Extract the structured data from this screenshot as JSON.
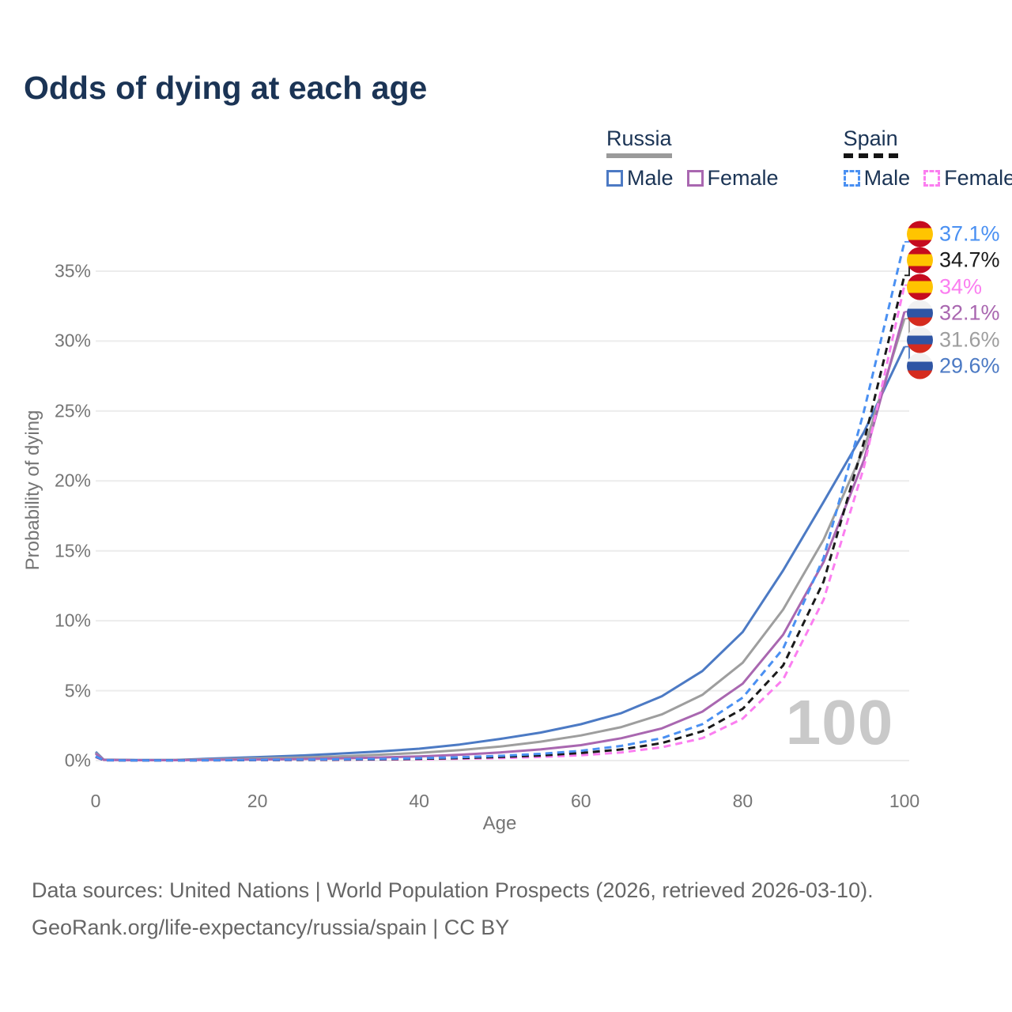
{
  "title": "Odds of dying at each age",
  "legend": {
    "groups": [
      {
        "name": "Russia",
        "underline": "solid-gray",
        "items": [
          {
            "label": "Male"
          },
          {
            "label": "Female"
          }
        ]
      },
      {
        "name": "Spain",
        "underline": "dashed-black",
        "items": [
          {
            "label": "Male"
          },
          {
            "label": "Female"
          }
        ]
      }
    ]
  },
  "colors": {
    "title_text": "#1b3455",
    "axis_text": "#757575",
    "gridline": "#ececec",
    "watermark_text": "#c9c9c9",
    "russia_male": "#4c7ac4",
    "russia_total": "#9e9e9e",
    "russia_female": "#a967b0",
    "spain_male": "#4a90f2",
    "spain_total": "#1a1a1a",
    "spain_female": "#fb7ef0"
  },
  "chart_data": {
    "type": "line",
    "title": "Odds of dying at each age",
    "xlabel": "Age",
    "ylabel": "Probability of dying",
    "x_ticks": [
      0,
      20,
      40,
      60,
      80,
      100
    ],
    "y_ticks_pct": [
      0,
      5,
      10,
      15,
      20,
      25,
      30,
      35
    ],
    "xlim": [
      0,
      100
    ],
    "ylim_pct": [
      0,
      38
    ],
    "grid": "horizontal-only",
    "legend_position": "top-right",
    "watermark": "100",
    "ages": [
      0,
      1,
      5,
      10,
      15,
      20,
      25,
      30,
      35,
      40,
      45,
      50,
      55,
      60,
      65,
      70,
      75,
      80,
      85,
      90,
      95,
      100
    ],
    "series": [
      {
        "name": "Spain Male",
        "country": "spain",
        "dash": true,
        "color": "#4a90f2",
        "end_label": "37.1%",
        "values_pct": [
          0.3,
          0.03,
          0.01,
          0.01,
          0.03,
          0.05,
          0.07,
          0.09,
          0.12,
          0.17,
          0.24,
          0.34,
          0.48,
          0.7,
          1.05,
          1.6,
          2.6,
          4.5,
          8.0,
          14.5,
          25.0,
          37.1
        ]
      },
      {
        "name": "Spain Total",
        "country": "spain",
        "dash": true,
        "color": "#1a1a1a",
        "end_label": "34.7%",
        "values_pct": [
          0.28,
          0.02,
          0.01,
          0.01,
          0.02,
          0.04,
          0.05,
          0.07,
          0.09,
          0.13,
          0.18,
          0.26,
          0.37,
          0.54,
          0.8,
          1.25,
          2.1,
          3.7,
          6.8,
          12.8,
          22.8,
          34.7
        ]
      },
      {
        "name": "Spain Female",
        "country": "spain",
        "dash": true,
        "color": "#fb7ef0",
        "end_label": "34%",
        "values_pct": [
          0.25,
          0.02,
          0.01,
          0.01,
          0.02,
          0.03,
          0.04,
          0.05,
          0.07,
          0.09,
          0.13,
          0.18,
          0.26,
          0.38,
          0.58,
          0.95,
          1.6,
          3.0,
          5.8,
          11.5,
          21.0,
          34.0
        ]
      },
      {
        "name": "Russia Female",
        "country": "russia",
        "dash": false,
        "color": "#a967b0",
        "end_label": "32.1%",
        "values_pct": [
          0.5,
          0.05,
          0.03,
          0.03,
          0.06,
          0.08,
          0.11,
          0.15,
          0.22,
          0.3,
          0.42,
          0.58,
          0.8,
          1.1,
          1.6,
          2.3,
          3.5,
          5.5,
          9.0,
          14.2,
          21.5,
          32.1
        ]
      },
      {
        "name": "Russia Total",
        "country": "russia",
        "dash": false,
        "color": "#9e9e9e",
        "end_label": "31.6%",
        "values_pct": [
          0.55,
          0.06,
          0.03,
          0.04,
          0.1,
          0.16,
          0.22,
          0.3,
          0.42,
          0.55,
          0.75,
          1.0,
          1.35,
          1.8,
          2.4,
          3.3,
          4.7,
          7.0,
          10.8,
          15.8,
          22.3,
          31.6
        ]
      },
      {
        "name": "Russia Male",
        "country": "russia",
        "dash": false,
        "color": "#4c7ac4",
        "end_label": "29.6%",
        "values_pct": [
          0.62,
          0.07,
          0.04,
          0.05,
          0.15,
          0.25,
          0.35,
          0.5,
          0.65,
          0.85,
          1.15,
          1.55,
          2.0,
          2.6,
          3.4,
          4.6,
          6.4,
          9.2,
          13.6,
          18.5,
          23.5,
          29.6
        ]
      }
    ]
  },
  "footer": {
    "line1": "Data sources: United Nations | World Population Prospects (2026, retrieved 2026-03-10).",
    "line2": "GeoRank.org/life-expectancy/russia/spain | CC BY"
  }
}
